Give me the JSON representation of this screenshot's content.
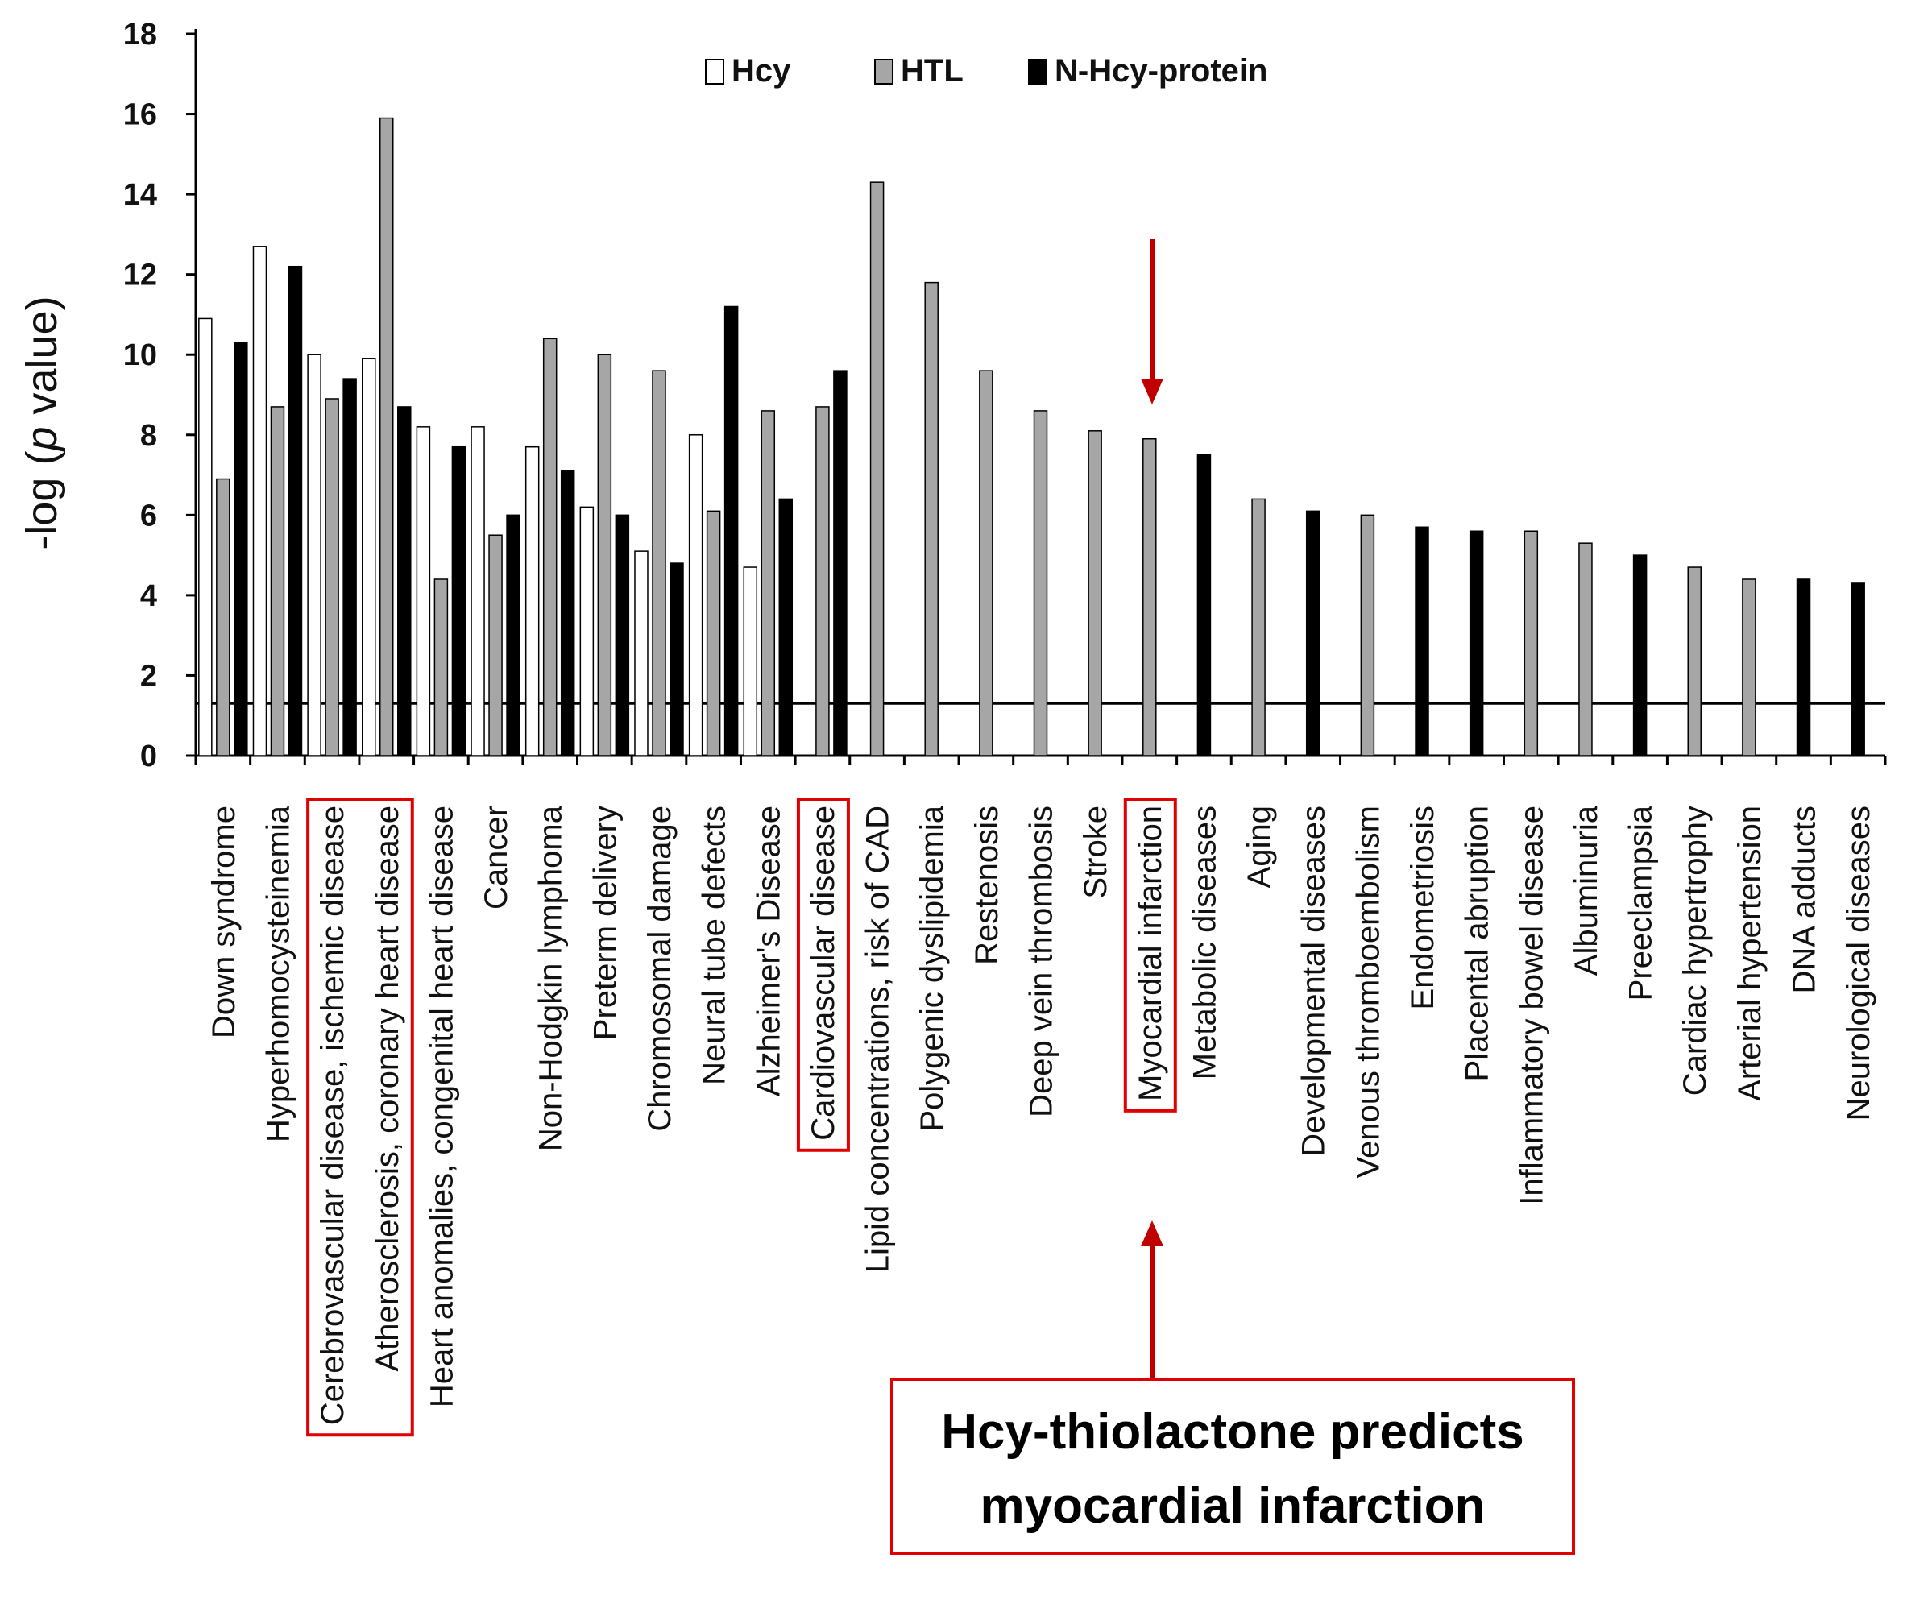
{
  "chart_data": {
    "type": "bar",
    "ylabel_prefix": "-log (",
    "ylabel_italic": "p",
    "ylabel_suffix": " value)",
    "ylim": [
      0,
      18
    ],
    "yticks": [
      0,
      2,
      4,
      6,
      8,
      10,
      12,
      14,
      16,
      18
    ],
    "threshold": 1.3,
    "legend": [
      {
        "name": "Hcy",
        "color": "#ffffff"
      },
      {
        "name": "HTL",
        "color": "#a6a6a6"
      },
      {
        "name": "N-Hcy-protein",
        "color": "#000000"
      }
    ],
    "categories": [
      "Down syndrome",
      "Hyperhomocysteinemia",
      "Cerebrovascular disease, ischemic disease",
      "Atherosclerosis, coronary heart disease",
      "Heart anomalies, congenital heart disease",
      "Cancer",
      "Non-Hodgkin lymphoma",
      "Preterm delivery",
      "Chromosomal damage",
      "Neural tube defects",
      "Alzheimer's Disease",
      "Cardiovascular disease",
      "Lipid concentrations, risk of CAD",
      "Polygenic dyslipidemia",
      "Restenosis",
      "Deep vein thrombosis",
      "Stroke",
      "Myocardial infarction",
      "Metabolic diseases",
      "Aging",
      "Developmental diseases",
      "Venous  thromboembolism",
      "Endometriosis",
      "Placental abruption",
      "Inflammatory bowel disease",
      "Albuminuria",
      "Preeclampsia",
      "Cardiac hypertrophy",
      "Arterial hypertension",
      "DNA adducts",
      "Neurological diseases"
    ],
    "series": [
      {
        "name": "Hcy",
        "values": [
          10.9,
          12.7,
          10.0,
          9.9,
          8.2,
          8.2,
          7.7,
          6.2,
          5.1,
          8.0,
          4.7,
          null,
          null,
          null,
          null,
          null,
          null,
          null,
          null,
          null,
          null,
          null,
          null,
          null,
          null,
          null,
          null,
          null,
          null,
          null,
          null
        ]
      },
      {
        "name": "HTL",
        "values": [
          6.9,
          8.7,
          8.9,
          15.9,
          4.4,
          5.5,
          10.4,
          10.0,
          9.6,
          6.1,
          8.6,
          8.7,
          14.3,
          11.8,
          9.6,
          8.6,
          8.1,
          7.9,
          null,
          6.4,
          null,
          6.0,
          null,
          null,
          5.6,
          5.3,
          null,
          4.7,
          4.4,
          null,
          null
        ]
      },
      {
        "name": "N-Hcy-protein",
        "values": [
          10.3,
          12.2,
          9.4,
          8.7,
          7.7,
          6.0,
          7.1,
          6.0,
          4.8,
          11.2,
          6.4,
          9.6,
          null,
          null,
          null,
          null,
          null,
          null,
          7.5,
          null,
          6.1,
          null,
          5.7,
          5.6,
          null,
          null,
          5.0,
          null,
          null,
          4.4,
          4.3
        ]
      }
    ],
    "highlighted_categories": [
      "Cerebrovascular disease, ischemic disease",
      "Atherosclerosis, coronary heart disease",
      "Cardiovascular disease",
      "Myocardial infarction"
    ],
    "annotation": {
      "line1": "Hcy-thiolactone predicts",
      "line2": "myocardial infarction",
      "color": "#c00000"
    }
  }
}
